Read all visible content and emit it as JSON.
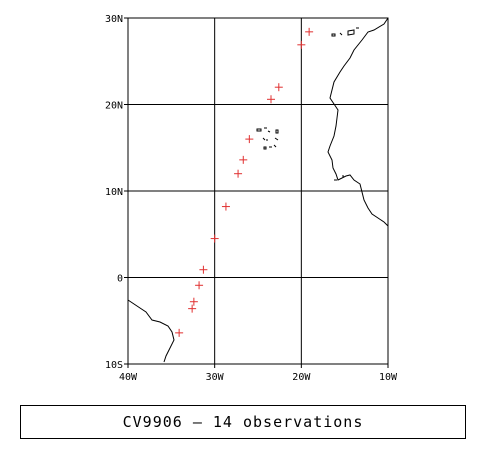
{
  "map": {
    "lat_range": [
      -10,
      30
    ],
    "lon_range": [
      -40,
      -10
    ],
    "grid_step_deg": 10,
    "grid": true,
    "marker_color": "#e03030",
    "marker_symbol": "+",
    "lat_ticks": [
      {
        "value": 30,
        "label": "30N"
      },
      {
        "value": 20,
        "label": "20N"
      },
      {
        "value": 10,
        "label": "10N"
      },
      {
        "value": 0,
        "label": "0"
      },
      {
        "value": -10,
        "label": "10S"
      }
    ],
    "lon_ticks": [
      {
        "value": -40,
        "label": "40W"
      },
      {
        "value": -30,
        "label": "30W"
      },
      {
        "value": -20,
        "label": "20W"
      },
      {
        "value": -10,
        "label": "10W"
      }
    ],
    "observations": [
      {
        "lat": 28.4,
        "lon": -19.1
      },
      {
        "lat": 26.9,
        "lon": -20.0
      },
      {
        "lat": 22.0,
        "lon": -22.6
      },
      {
        "lat": 20.6,
        "lon": -23.5
      },
      {
        "lat": 16.0,
        "lon": -26.0
      },
      {
        "lat": 13.6,
        "lon": -26.7
      },
      {
        "lat": 12.0,
        "lon": -27.3
      },
      {
        "lat": 8.2,
        "lon": -28.7
      },
      {
        "lat": 4.5,
        "lon": -30.0
      },
      {
        "lat": 0.9,
        "lon": -31.3
      },
      {
        "lat": -0.9,
        "lon": -31.8
      },
      {
        "lat": -2.8,
        "lon": -32.4
      },
      {
        "lat": -3.6,
        "lon": -32.6
      },
      {
        "lat": -6.4,
        "lon": -34.1
      }
    ]
  },
  "caption": {
    "text": "CV9906 – 14 observations"
  }
}
